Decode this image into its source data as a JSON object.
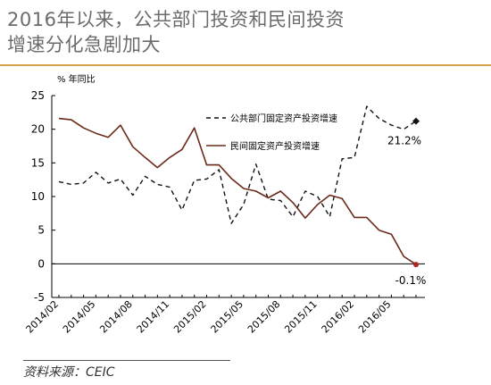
{
  "header": {
    "title_line1": "2016年以来，公共部门投资和民间投资",
    "title_line2": "增速分化急剧加大"
  },
  "footer": {
    "source": "资料来源：CEIC"
  },
  "colors": {
    "public": "#111111",
    "private": "#6b2a1a",
    "accent_rule": "#d7a24a"
  },
  "chart_data": {
    "type": "line",
    "unit_label": "% 年同比",
    "ylim": [
      -5,
      25
    ],
    "yticks": [
      -5,
      0,
      5,
      10,
      15,
      20,
      25
    ],
    "xticks": [
      "2014/02",
      "2014/05",
      "2014/08",
      "2014/11",
      "2015/02",
      "2015/05",
      "2015/08",
      "2015/11",
      "2016/02",
      "2016/05"
    ],
    "x": [
      "2014/02",
      "2014/03",
      "2014/04",
      "2014/05",
      "2014/06",
      "2014/07",
      "2014/08",
      "2014/09",
      "2014/10",
      "2014/11",
      "2014/12",
      "2015/01",
      "2015/02",
      "2015/03",
      "2015/04",
      "2015/05",
      "2015/06",
      "2015/07",
      "2015/08",
      "2015/09",
      "2015/10",
      "2015/11",
      "2015/12",
      "2016/01",
      "2016/02",
      "2016/03",
      "2016/04",
      "2016/05",
      "2016/06",
      "2016/07"
    ],
    "grid": false,
    "legend_position": "top-right",
    "series": [
      {
        "name": "公共部门固定资产投资增速",
        "style": "dashed",
        "values": [
          12.2,
          11.8,
          12,
          13.6,
          12,
          12.6,
          10.2,
          13,
          11.8,
          11.4,
          8,
          12.4,
          12.6,
          14,
          6,
          8.8,
          14.8,
          9.6,
          9.4,
          7,
          10.8,
          10,
          7,
          15.6,
          15.8,
          23.4,
          21.6,
          20.6,
          20,
          21.2
        ]
      },
      {
        "name": "民间固定资产投资增速",
        "style": "solid",
        "values": [
          21.6,
          21.4,
          20.2,
          19.4,
          18.8,
          20.6,
          17.4,
          15.8,
          14.3,
          15.8,
          17,
          20.2,
          14.7,
          14.7,
          12.7,
          11.2,
          10.8,
          9.8,
          10.8,
          9.1,
          6.8,
          8.8,
          10.2,
          9.7,
          6.9,
          6.9,
          5,
          4.4,
          1.1,
          -0.1
        ]
      }
    ],
    "annotations": [
      {
        "text": "21.2%",
        "series": 0,
        "index": 29
      },
      {
        "text": "-0.1%",
        "series": 1,
        "index": 29
      }
    ]
  }
}
